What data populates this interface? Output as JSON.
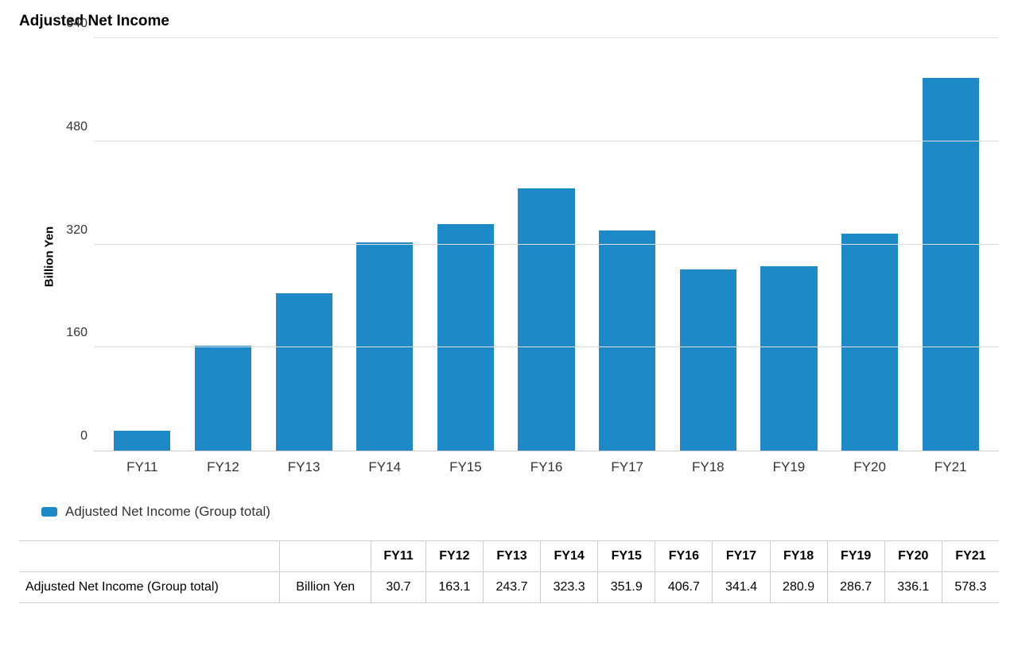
{
  "title": "Adjusted Net Income",
  "chart": {
    "type": "bar",
    "ylabel": "Billion Yen",
    "ylim_max": 640,
    "ytick_step": 160,
    "yticks": [
      0,
      160,
      320,
      480,
      640
    ],
    "categories": [
      "FY11",
      "FY12",
      "FY13",
      "FY14",
      "FY15",
      "FY16",
      "FY17",
      "FY18",
      "FY19",
      "FY20",
      "FY21"
    ],
    "values": [
      30.7,
      163.1,
      243.7,
      323.3,
      351.9,
      406.7,
      341.4,
      280.9,
      286.7,
      336.1,
      578.3
    ],
    "bar_color": "#1d8ac7",
    "grid_color": "#e0e0e0",
    "axis_color": "#cccccc",
    "background_color": "#ffffff",
    "bar_width_ratio": 0.7,
    "title_fontsize": 19,
    "label_fontsize": 15,
    "tick_fontsize": 16
  },
  "legend": {
    "label": "Adjusted Net Income (Group total)",
    "swatch_color": "#1d8ac7"
  },
  "table": {
    "row_label": "Adjusted Net Income (Group total)",
    "unit": "Billion Yen",
    "columns": [
      "FY11",
      "FY12",
      "FY13",
      "FY14",
      "FY15",
      "FY16",
      "FY17",
      "FY18",
      "FY19",
      "FY20",
      "FY21"
    ],
    "row_values": [
      "30.7",
      "163.1",
      "243.7",
      "323.3",
      "351.9",
      "406.7",
      "341.4",
      "280.9",
      "286.7",
      "336.1",
      "578.3"
    ]
  }
}
